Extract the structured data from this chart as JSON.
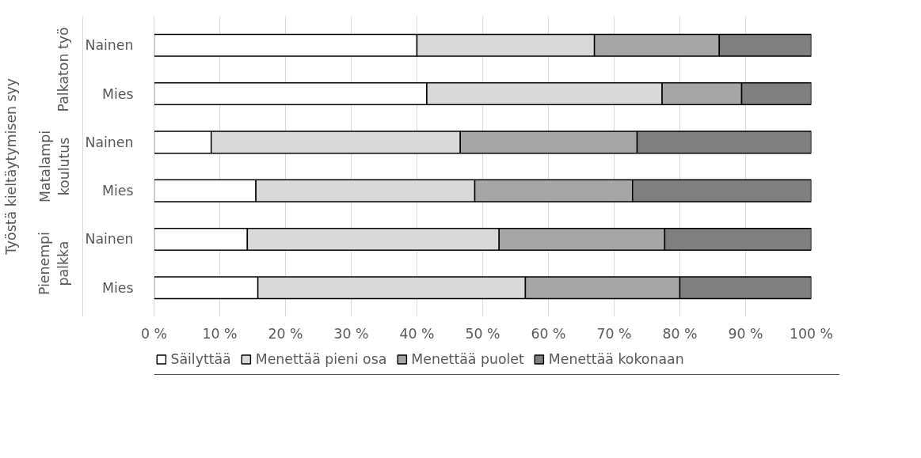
{
  "chart_data": {
    "type": "bar",
    "orientation": "horizontal",
    "stacked": true,
    "ylabel": "Työstä kieltäytymisen syy",
    "categories": [
      "Nainen",
      "Mies",
      "Nainen",
      "Mies",
      "Nainen",
      "Mies"
    ],
    "annotations": [
      "Palkaton työ",
      "Matalampi\nkoulutus",
      "Pienempi\npalkka"
    ],
    "series": [
      {
        "name": "Säilyttää",
        "color": "#ffffff",
        "values": [
          40,
          41.5,
          8.7,
          15.5,
          14.2,
          15.8
        ]
      },
      {
        "name": "Menettää pieni osa",
        "color": "#d9d9d9",
        "values": [
          27,
          35.8,
          37.9,
          33.3,
          38.3,
          40.7
        ]
      },
      {
        "name": "Menettää puolet",
        "color": "#a6a6a6",
        "values": [
          19,
          12.1,
          26.9,
          24,
          25.2,
          23.5
        ]
      },
      {
        "name": "Menettää kokonaan",
        "color": "#7f7f7f",
        "values": [
          14,
          10.6,
          26.5,
          27.2,
          22.3,
          20
        ]
      }
    ],
    "xlim": [
      0,
      100
    ],
    "xticks": [
      {
        "value": 0,
        "label": "0 %"
      },
      {
        "value": 10,
        "label": "10 %"
      },
      {
        "value": 20,
        "label": "20 %"
      },
      {
        "value": 30,
        "label": "30 %"
      },
      {
        "value": 40,
        "label": "40 %"
      },
      {
        "value": 50,
        "label": "50 %"
      },
      {
        "value": 60,
        "label": "60 %"
      },
      {
        "value": 70,
        "label": "70 %"
      },
      {
        "value": 80,
        "label": "80 %"
      },
      {
        "value": 90,
        "label": "90 %"
      },
      {
        "value": 100,
        "label": "100 %"
      }
    ],
    "grid": "x",
    "legend": "bottom"
  }
}
